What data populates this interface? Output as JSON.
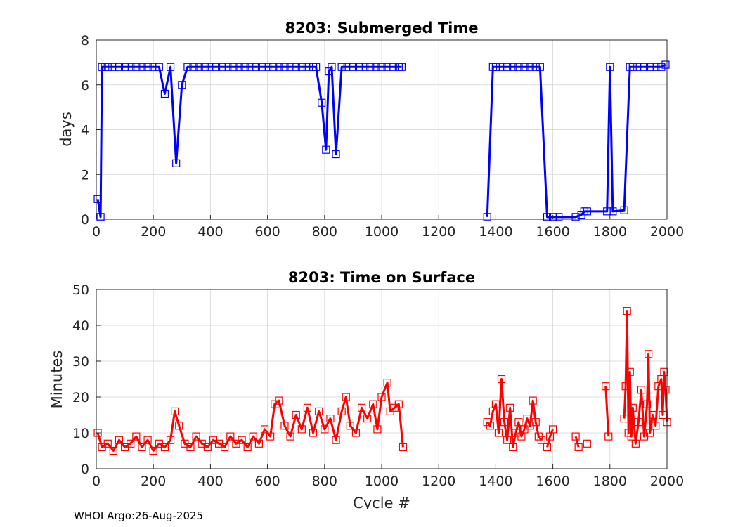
{
  "footer": "WHOI Argo:26-Aug-2025",
  "colors": {
    "submerged": "#0000ff",
    "surface": "#ff0000",
    "grid": "#d0d0d0",
    "axis": "#262626"
  },
  "chart_data": [
    {
      "type": "line",
      "title": "8203: Submerged Time",
      "xlabel": "",
      "ylabel": "days",
      "xlim": [
        0,
        2000
      ],
      "ylim": [
        0,
        8
      ],
      "xticks": [
        "0",
        "200",
        "400",
        "600",
        "800",
        "1000",
        "1200",
        "1400",
        "1600",
        "1800",
        "2000"
      ],
      "yticks": [
        "0",
        "2",
        "4",
        "6",
        "8"
      ],
      "grid": true,
      "marker": "square",
      "series": [
        {
          "name": "submerged_time",
          "color": "#0000ff",
          "x": [
            5,
            15,
            20,
            30,
            40,
            60,
            80,
            100,
            120,
            140,
            160,
            180,
            200,
            220,
            240,
            260,
            280,
            300,
            320,
            340,
            360,
            380,
            400,
            420,
            440,
            460,
            480,
            500,
            520,
            540,
            560,
            580,
            600,
            620,
            640,
            660,
            680,
            700,
            720,
            740,
            760,
            770,
            790,
            805,
            815,
            825,
            840,
            860,
            880,
            900,
            920,
            940,
            960,
            980,
            1000,
            1020,
            1040,
            1060,
            1070
          ],
          "y": [
            0.9,
            0.1,
            6.8,
            6.8,
            6.8,
            6.8,
            6.8,
            6.8,
            6.8,
            6.8,
            6.8,
            6.8,
            6.8,
            6.8,
            5.6,
            6.8,
            2.5,
            6.0,
            6.8,
            6.8,
            6.8,
            6.8,
            6.8,
            6.8,
            6.8,
            6.8,
            6.8,
            6.8,
            6.8,
            6.8,
            6.8,
            6.8,
            6.8,
            6.8,
            6.8,
            6.8,
            6.8,
            6.8,
            6.8,
            6.8,
            6.8,
            6.8,
            5.2,
            3.1,
            6.6,
            6.8,
            2.9,
            6.8,
            6.8,
            6.8,
            6.8,
            6.8,
            6.8,
            6.8,
            6.8,
            6.8,
            6.8,
            6.8,
            6.8
          ]
        },
        {
          "name": "submerged_time_b",
          "color": "#0000ff",
          "x": [
            1370,
            1390,
            1400,
            1420,
            1440,
            1460,
            1480,
            1500,
            1520,
            1540,
            1555,
            1580,
            1600,
            1620,
            1680,
            1700,
            1710,
            1720,
            1790,
            1800,
            1810,
            1850,
            1870,
            1880,
            1900,
            1920,
            1940,
            1960,
            1980,
            1995
          ],
          "y": [
            0.1,
            6.8,
            6.8,
            6.8,
            6.8,
            6.8,
            6.8,
            6.8,
            6.8,
            6.8,
            6.8,
            0.1,
            0.1,
            0.1,
            0.1,
            0.2,
            0.35,
            0.35,
            0.35,
            6.8,
            0.35,
            0.4,
            6.8,
            6.8,
            6.8,
            6.8,
            6.8,
            6.8,
            6.8,
            6.9
          ]
        }
      ]
    },
    {
      "type": "line",
      "title": "8203: Time on Surface",
      "xlabel": "Cycle #",
      "ylabel": "Minutes",
      "xlim": [
        0,
        2000
      ],
      "ylim": [
        0,
        50
      ],
      "xticks": [
        "0",
        "200",
        "400",
        "600",
        "800",
        "1000",
        "1200",
        "1400",
        "1600",
        "1800",
        "2000"
      ],
      "yticks": [
        "0",
        "10",
        "20",
        "30",
        "40",
        "50"
      ],
      "grid": true,
      "marker": "square",
      "series": [
        {
          "name": "surface_time_a",
          "color": "#ff0000",
          "x": [
            5,
            20,
            40,
            60,
            80,
            100,
            120,
            140,
            160,
            180,
            200,
            220,
            240,
            260,
            275,
            290,
            310,
            330,
            350,
            370,
            390,
            410,
            430,
            450,
            470,
            490,
            510,
            530,
            550,
            570,
            590,
            610,
            625,
            640,
            660,
            680,
            700,
            720,
            740,
            760,
            780,
            800,
            820,
            840,
            860,
            875,
            890,
            910,
            930,
            950,
            970,
            985,
            1000,
            1020,
            1030,
            1045,
            1060,
            1075
          ],
          "y": [
            10,
            6,
            7,
            5,
            8,
            6,
            7,
            9,
            6,
            8,
            5,
            7,
            6,
            8,
            16,
            12,
            7,
            6,
            9,
            7,
            6,
            8,
            7,
            6,
            9,
            7,
            8,
            6,
            9,
            7,
            11,
            9,
            18,
            19,
            12,
            9,
            15,
            11,
            17,
            10,
            16,
            11,
            14,
            8,
            16,
            20,
            12,
            10,
            17,
            14,
            18,
            11,
            20,
            24,
            16,
            17,
            18,
            6
          ]
        },
        {
          "name": "surface_time_b",
          "color": "#ff0000",
          "x": [
            1370,
            1380,
            1390,
            1400,
            1410,
            1420,
            1430,
            1440,
            1450,
            1460,
            1470,
            1480,
            1490,
            1500,
            1510,
            1520,
            1530,
            1540,
            1550,
            1560
          ],
          "y": [
            13,
            12,
            16,
            18,
            10,
            25,
            13,
            8,
            17,
            6,
            10,
            13,
            9,
            11,
            14,
            12,
            19,
            13,
            9,
            8
          ]
        },
        {
          "name": "surface_time_c",
          "color": "#ff0000",
          "x": [
            1580,
            1590,
            1600
          ],
          "y": [
            6,
            9,
            11
          ]
        },
        {
          "name": "surface_time_d",
          "color": "#ff0000",
          "x": [
            1680,
            1690
          ],
          "y": [
            9,
            6
          ]
        },
        {
          "name": "surface_time_e",
          "color": "#ff0000",
          "x": [
            1720
          ],
          "y": [
            7
          ]
        },
        {
          "name": "surface_time_f",
          "color": "#ff0000",
          "x": [
            1785,
            1795
          ],
          "y": [
            23,
            9
          ]
        },
        {
          "name": "surface_time_g",
          "color": "#ff0000",
          "x": [
            1850,
            1855,
            1860,
            1865,
            1870,
            1875,
            1880,
            1890,
            1900,
            1910,
            1920,
            1930,
            1935,
            1940,
            1950,
            1960,
            1970,
            1980,
            1985,
            1990,
            1995,
            2000
          ],
          "y": [
            14,
            23,
            44,
            10,
            27,
            9,
            17,
            7,
            13,
            22,
            9,
            18,
            32,
            10,
            15,
            12,
            23,
            25,
            15,
            27,
            22,
            13
          ]
        }
      ]
    }
  ]
}
